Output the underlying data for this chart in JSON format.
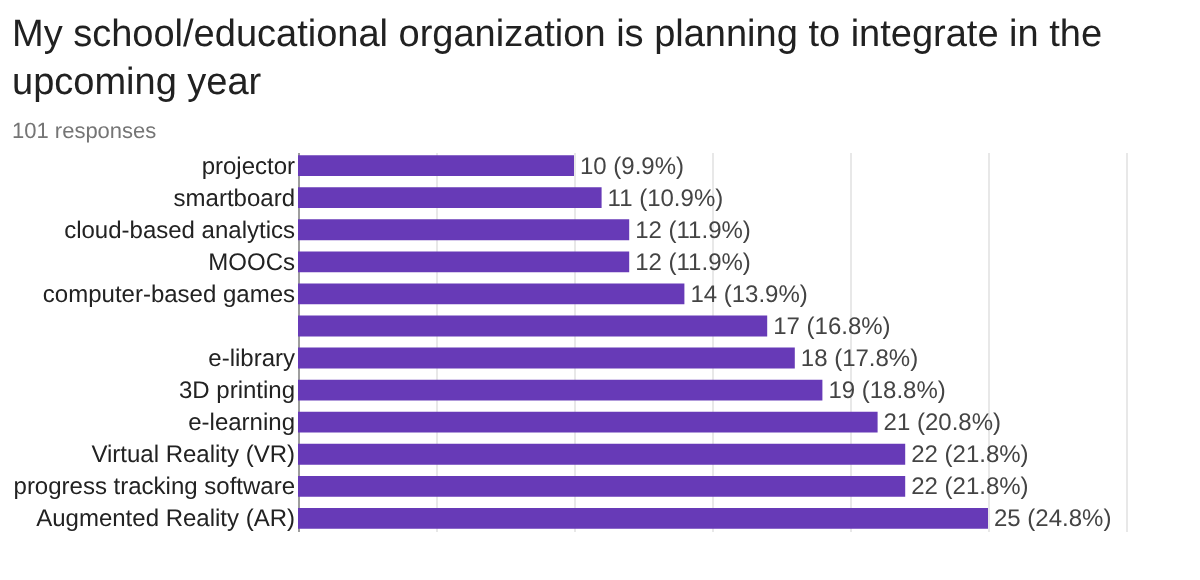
{
  "chart_data": {
    "type": "bar",
    "orientation": "horizontal",
    "title": "My school/educational organization is planning to integrate in the upcoming year",
    "subtitle": "101 responses",
    "categories": [
      "projector",
      "smartboard",
      "cloud-based analytics",
      "MOOCs",
      "computer-based games",
      null,
      "e-library",
      "3D printing",
      "e-learning",
      "Virtual Reality (VR)",
      "progress tracking software",
      "Augmented Reality (AR)"
    ],
    "values": [
      10,
      11,
      12,
      12,
      14,
      17,
      18,
      19,
      21,
      22,
      22,
      25
    ],
    "value_labels": [
      "10 (9.9%)",
      "11 (10.9%)",
      "12 (11.9%)",
      "12 (11.9%)",
      "14 (13.9%)",
      "17 (16.8%)",
      "18 (17.8%)",
      "19 (18.8%)",
      "21 (20.8%)",
      "22 (21.8%)",
      "22 (21.8%)",
      "25 (24.8%)"
    ],
    "color": "#673ab7",
    "xlim": [
      0,
      30
    ],
    "xticks": [
      {
        "value": 0,
        "label": null
      },
      {
        "value": 5,
        "label": null
      },
      {
        "value": 10,
        "label": null
      },
      {
        "value": 15,
        "label": null
      },
      {
        "value": 20,
        "label": null
      },
      {
        "value": 25,
        "label": null
      },
      {
        "value": 30,
        "label": null
      }
    ],
    "grid": "x",
    "tick_labels": "y"
  }
}
